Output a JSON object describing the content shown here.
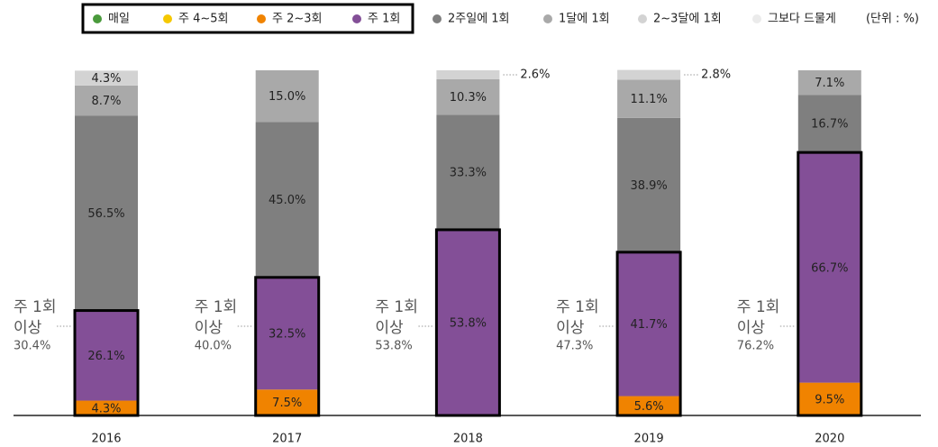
{
  "chart_data": {
    "type": "stacked_bar",
    "unit": "(단위 : %)",
    "categories": [
      "2016",
      "2017",
      "2018",
      "2019",
      "2020"
    ],
    "ylim": [
      0,
      100
    ],
    "series": [
      {
        "name": "매일",
        "color": "#4a9a3c",
        "values": [
          null,
          null,
          null,
          null,
          null
        ]
      },
      {
        "name": "주 4~5회",
        "color": "#f5c800",
        "values": [
          null,
          null,
          null,
          null,
          null
        ]
      },
      {
        "name": "주 2~3회",
        "color": "#f08300",
        "values": [
          4.3,
          7.5,
          null,
          5.6,
          9.5
        ],
        "value_labels": [
          "4.3%",
          "7.5%",
          null,
          "5.6%",
          "9.5%"
        ]
      },
      {
        "name": "주 1회",
        "color": "#834f97",
        "values": [
          26.1,
          32.5,
          53.8,
          41.7,
          66.7
        ],
        "value_labels": [
          "26.1%",
          "32.5%",
          "53.8%",
          "41.7%",
          "66.7%"
        ]
      },
      {
        "name": "2주일에 1회",
        "color": "#7f7f7f",
        "values": [
          56.5,
          45.0,
          33.3,
          38.9,
          16.7
        ],
        "value_labels": [
          "56.5%",
          "45.0%",
          "33.3%",
          "38.9%",
          "16.7%"
        ]
      },
      {
        "name": "1달에 1회",
        "color": "#a9a9a9",
        "values": [
          8.7,
          15.0,
          10.3,
          11.1,
          7.1
        ],
        "value_labels": [
          "8.7%",
          "15.0%",
          "10.3%",
          "11.1%",
          "7.1%"
        ]
      },
      {
        "name": "2~3달에 1회",
        "color": "#d3d3d3",
        "values": [
          4.3,
          null,
          2.6,
          2.8,
          null
        ],
        "value_labels": [
          "4.3%",
          null,
          "2.6%",
          "2.8%",
          null
        ]
      },
      {
        "name": "그보다 드물게",
        "color": "#ebebeb",
        "values": [
          null,
          null,
          null,
          null,
          null
        ]
      }
    ],
    "weekly_plus": {
      "label_lines": [
        "주 1회",
        "이상"
      ],
      "values": [
        30.4,
        40.0,
        53.8,
        47.3,
        76.2
      ],
      "value_labels": [
        "30.4%",
        "40.0%",
        "53.8%",
        "47.3%",
        "76.2%"
      ]
    }
  }
}
